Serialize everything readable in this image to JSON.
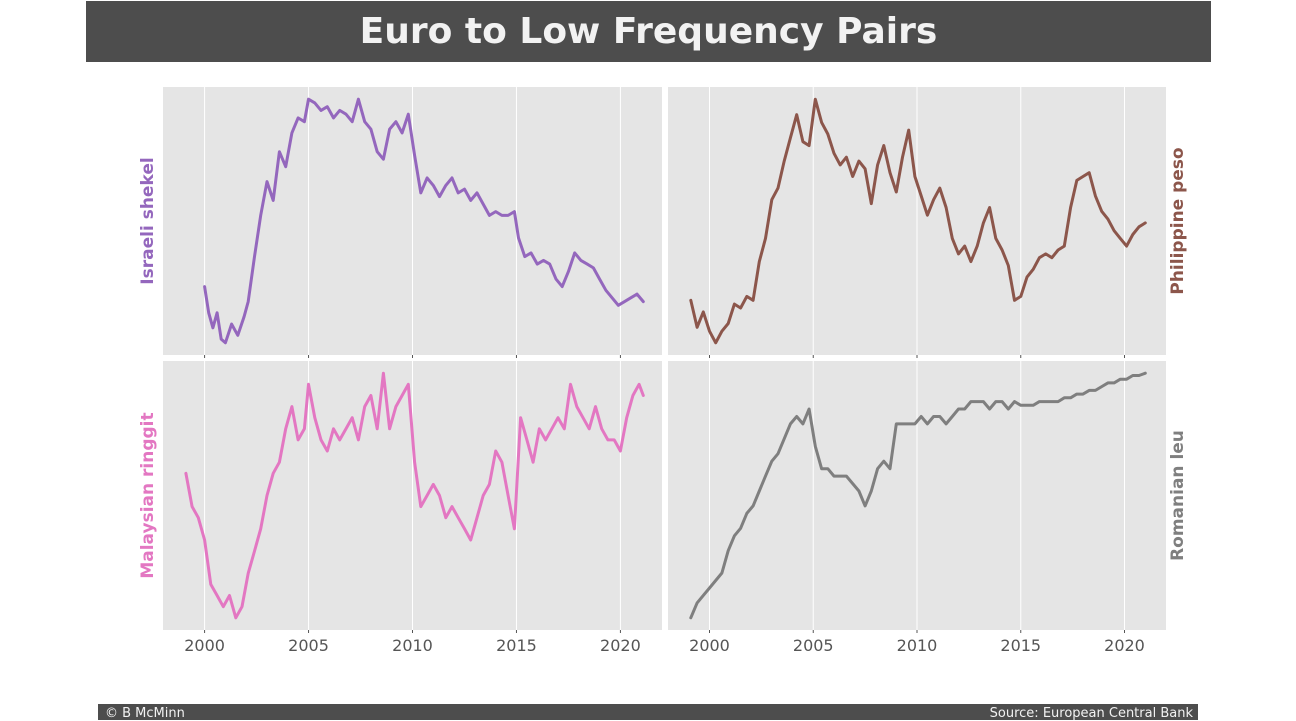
{
  "title": "Euro to Low Frequency Pairs",
  "footer": {
    "left": "© B McMinn",
    "right": "Source: European Central Bank"
  },
  "chart_data": [
    {
      "type": "line",
      "series": [
        {
          "name": "Israeli shekel",
          "color": "#9467bd",
          "x": [
            2000.0,
            2000.2,
            2000.4,
            2000.6,
            2000.8,
            2001.0,
            2001.3,
            2001.6,
            2001.9,
            2002.1,
            2002.4,
            2002.7,
            2003.0,
            2003.3,
            2003.6,
            2003.9,
            2004.2,
            2004.5,
            2004.8,
            2005.0,
            2005.3,
            2005.6,
            2005.9,
            2006.2,
            2006.5,
            2006.8,
            2007.1,
            2007.4,
            2007.7,
            2008.0,
            2008.3,
            2008.6,
            2008.9,
            2009.2,
            2009.5,
            2009.8,
            2010.1,
            2010.4,
            2010.7,
            2011.0,
            2011.3,
            2011.6,
            2011.9,
            2012.2,
            2012.5,
            2012.8,
            2013.1,
            2013.4,
            2013.7,
            2014.0,
            2014.3,
            2014.6,
            2014.9,
            2015.1,
            2015.4,
            2015.7,
            2016.0,
            2016.3,
            2016.6,
            2016.9,
            2017.2,
            2017.5,
            2017.8,
            2018.1,
            2018.4,
            2018.7,
            2019.0,
            2019.3,
            2019.6,
            2019.9,
            2020.2,
            2020.5,
            2020.8,
            2021.1
          ],
          "y": [
            6.0,
            5.3,
            4.9,
            5.3,
            4.6,
            4.5,
            5.0,
            4.7,
            5.2,
            5.6,
            6.8,
            7.9,
            8.8,
            8.3,
            9.6,
            9.2,
            10.1,
            10.5,
            10.4,
            11.0,
            10.9,
            10.7,
            10.8,
            10.5,
            10.7,
            10.6,
            10.4,
            11.0,
            10.4,
            10.2,
            9.6,
            9.4,
            10.2,
            10.4,
            10.1,
            10.6,
            9.5,
            8.5,
            8.9,
            8.7,
            8.4,
            8.7,
            8.9,
            8.5,
            8.6,
            8.3,
            8.5,
            8.2,
            7.9,
            8.0,
            7.9,
            7.9,
            8.0,
            7.3,
            6.8,
            6.9,
            6.6,
            6.7,
            6.6,
            6.2,
            6.0,
            6.4,
            6.9,
            6.7,
            6.6,
            6.5,
            6.2,
            5.9,
            5.7,
            5.5,
            5.6,
            5.7,
            5.8,
            5.6
          ]
        }
      ],
      "xlim": [
        1998.0,
        2022.0
      ],
      "x_ticks": [
        "2000",
        "2005",
        "2010",
        "2015",
        "2020"
      ],
      "show_x_labels": false,
      "ylabel": "Israeli shekel",
      "ylabel_side": "left",
      "grid": true
    },
    {
      "type": "line",
      "series": [
        {
          "name": "Philippine peso",
          "color": "#8c564b",
          "x": [
            1999.1,
            1999.4,
            1999.7,
            2000.0,
            2000.3,
            2000.6,
            2000.9,
            2001.2,
            2001.5,
            2001.8,
            2002.1,
            2002.4,
            2002.7,
            2003.0,
            2003.3,
            2003.6,
            2003.9,
            2004.2,
            2004.5,
            2004.8,
            2005.1,
            2005.4,
            2005.7,
            2006.0,
            2006.3,
            2006.6,
            2006.9,
            2007.2,
            2007.5,
            2007.8,
            2008.1,
            2008.4,
            2008.7,
            2009.0,
            2009.3,
            2009.6,
            2009.9,
            2010.2,
            2010.5,
            2010.8,
            2011.1,
            2011.4,
            2011.7,
            2012.0,
            2012.3,
            2012.6,
            2012.9,
            2013.2,
            2013.5,
            2013.8,
            2014.1,
            2014.4,
            2014.7,
            2015.0,
            2015.3,
            2015.6,
            2015.9,
            2016.2,
            2016.5,
            2016.8,
            2017.1,
            2017.4,
            2017.7,
            2018.0,
            2018.3,
            2018.6,
            2018.9,
            2019.2,
            2019.5,
            2019.8,
            2020.1,
            2020.4,
            2020.7,
            2021.0
          ],
          "y": [
            50.0,
            46.5,
            48.5,
            46.0,
            44.5,
            46.0,
            47.0,
            49.5,
            49.0,
            50.5,
            50.0,
            55.0,
            58.0,
            63.0,
            64.5,
            68.0,
            71.0,
            74.0,
            70.5,
            70.0,
            76.0,
            73.0,
            71.5,
            69.0,
            67.5,
            68.5,
            66.0,
            68.0,
            67.0,
            62.5,
            67.5,
            70.0,
            66.5,
            64.0,
            68.5,
            72.0,
            66.0,
            63.5,
            61.0,
            63.0,
            64.5,
            62.0,
            58.0,
            56.0,
            57.0,
            55.0,
            57.0,
            60.0,
            62.0,
            58.0,
            56.5,
            54.5,
            50.0,
            50.5,
            53.0,
            54.0,
            55.5,
            56.0,
            55.5,
            56.5,
            57.0,
            62.0,
            65.5,
            66.0,
            66.5,
            63.5,
            61.5,
            60.5,
            59.0,
            58.0,
            57.0,
            58.5,
            59.5,
            60.0
          ]
        }
      ],
      "xlim": [
        1998.0,
        2022.0
      ],
      "x_ticks": [
        "2000",
        "2005",
        "2010",
        "2015",
        "2020"
      ],
      "show_x_labels": false,
      "ylabel": "Philippine peso",
      "ylabel_side": "right",
      "grid": true
    },
    {
      "type": "line",
      "series": [
        {
          "name": "Malaysian ringgit",
          "color": "#e377c2",
          "x": [
            1999.1,
            1999.4,
            1999.7,
            2000.0,
            2000.3,
            2000.6,
            2000.9,
            2001.2,
            2001.5,
            2001.8,
            2002.1,
            2002.4,
            2002.7,
            2003.0,
            2003.3,
            2003.6,
            2003.9,
            2004.2,
            2004.5,
            2004.8,
            2005.0,
            2005.3,
            2005.6,
            2005.9,
            2006.2,
            2006.5,
            2006.8,
            2007.1,
            2007.4,
            2007.7,
            2008.0,
            2008.3,
            2008.6,
            2008.9,
            2009.2,
            2009.5,
            2009.8,
            2010.1,
            2010.4,
            2010.7,
            2011.0,
            2011.3,
            2011.6,
            2011.9,
            2012.2,
            2012.5,
            2012.8,
            2013.1,
            2013.4,
            2013.7,
            2014.0,
            2014.3,
            2014.6,
            2014.9,
            2015.2,
            2015.5,
            2015.8,
            2016.1,
            2016.4,
            2016.7,
            2017.0,
            2017.3,
            2017.6,
            2017.9,
            2018.2,
            2018.5,
            2018.8,
            2019.1,
            2019.4,
            2019.7,
            2020.0,
            2020.3,
            2020.6,
            2020.9,
            2021.1
          ],
          "y": [
            4.2,
            3.9,
            3.8,
            3.6,
            3.2,
            3.1,
            3.0,
            3.1,
            2.9,
            3.0,
            3.3,
            3.5,
            3.7,
            4.0,
            4.2,
            4.3,
            4.6,
            4.8,
            4.5,
            4.6,
            5.0,
            4.7,
            4.5,
            4.4,
            4.6,
            4.5,
            4.6,
            4.7,
            4.5,
            4.8,
            4.9,
            4.6,
            5.1,
            4.6,
            4.8,
            4.9,
            5.0,
            4.3,
            3.9,
            4.0,
            4.1,
            4.0,
            3.8,
            3.9,
            3.8,
            3.7,
            3.6,
            3.8,
            4.0,
            4.1,
            4.4,
            4.3,
            4.0,
            3.7,
            4.7,
            4.5,
            4.3,
            4.6,
            4.5,
            4.6,
            4.7,
            4.6,
            5.0,
            4.8,
            4.7,
            4.6,
            4.8,
            4.6,
            4.5,
            4.5,
            4.4,
            4.7,
            4.9,
            5.0,
            4.9
          ]
        }
      ],
      "xlim": [
        1998.0,
        2022.0
      ],
      "x_ticks": [
        "2000",
        "2005",
        "2010",
        "2015",
        "2020"
      ],
      "show_x_labels": true,
      "ylabel": "Malaysian ringgit",
      "ylabel_side": "left",
      "grid": true
    },
    {
      "type": "line",
      "series": [
        {
          "name": "Romanian leu",
          "color": "#7f7f7f",
          "x": [
            1999.1,
            1999.4,
            1999.7,
            2000.0,
            2000.3,
            2000.6,
            2000.9,
            2001.2,
            2001.5,
            2001.8,
            2002.1,
            2002.4,
            2002.7,
            2003.0,
            2003.3,
            2003.6,
            2003.9,
            2004.2,
            2004.5,
            2004.8,
            2005.1,
            2005.4,
            2005.7,
            2006.0,
            2006.3,
            2006.6,
            2006.9,
            2007.2,
            2007.5,
            2007.8,
            2008.1,
            2008.4,
            2008.7,
            2009.0,
            2009.3,
            2009.6,
            2009.9,
            2010.2,
            2010.5,
            2010.8,
            2011.1,
            2011.4,
            2011.7,
            2012.0,
            2012.3,
            2012.6,
            2012.9,
            2013.2,
            2013.5,
            2013.8,
            2014.1,
            2014.4,
            2014.7,
            2015.0,
            2015.3,
            2015.6,
            2015.9,
            2016.2,
            2016.5,
            2016.8,
            2017.1,
            2017.4,
            2017.7,
            2018.0,
            2018.3,
            2018.6,
            2018.9,
            2019.2,
            2019.5,
            2019.8,
            2020.1,
            2020.4,
            2020.7,
            2021.0
          ],
          "y": [
            1.6,
            1.8,
            1.9,
            2.0,
            2.1,
            2.2,
            2.5,
            2.7,
            2.8,
            3.0,
            3.1,
            3.3,
            3.5,
            3.7,
            3.8,
            4.0,
            4.2,
            4.3,
            4.2,
            4.4,
            3.9,
            3.6,
            3.6,
            3.5,
            3.5,
            3.5,
            3.4,
            3.3,
            3.1,
            3.3,
            3.6,
            3.7,
            3.6,
            4.2,
            4.2,
            4.2,
            4.2,
            4.3,
            4.2,
            4.3,
            4.3,
            4.2,
            4.3,
            4.4,
            4.4,
            4.5,
            4.5,
            4.5,
            4.4,
            4.5,
            4.5,
            4.4,
            4.5,
            4.45,
            4.45,
            4.45,
            4.5,
            4.5,
            4.5,
            4.5,
            4.55,
            4.55,
            4.6,
            4.6,
            4.65,
            4.65,
            4.7,
            4.75,
            4.75,
            4.8,
            4.8,
            4.85,
            4.85,
            4.88
          ]
        }
      ],
      "xlim": [
        1998.0,
        2022.0
      ],
      "x_ticks": [
        "2000",
        "2005",
        "2010",
        "2015",
        "2020"
      ],
      "show_x_labels": true,
      "ylabel": "Romanian leu",
      "ylabel_side": "right",
      "grid": true
    }
  ]
}
